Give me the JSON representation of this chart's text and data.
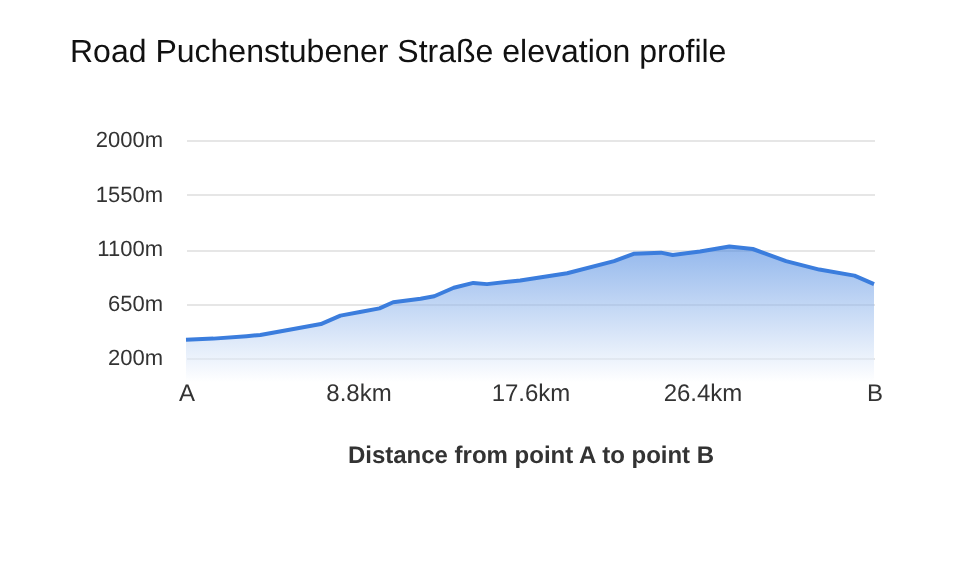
{
  "chart_data": {
    "type": "area",
    "title": "Road Puchenstubener Straße elevation profile",
    "xlabel": "Distance from point A to point B",
    "x": [
      0,
      1.4,
      3.1,
      3.8,
      5.5,
      6.9,
      7.9,
      8.9,
      9.9,
      10.6,
      12.0,
      12.7,
      13.7,
      14.7,
      15.4,
      17.1,
      19.5,
      21.9,
      22.9,
      24.3,
      24.9,
      26.3,
      27.8,
      29.0,
      30.7,
      32.4,
      34.2,
      35.2
    ],
    "series": [
      {
        "color": "#3b7ddd",
        "values": [
          350,
          360,
          380,
          390,
          440,
          480,
          550,
          580,
          610,
          660,
          690,
          710,
          780,
          820,
          810,
          840,
          900,
          1000,
          1060,
          1070,
          1050,
          1080,
          1120,
          1100,
          1000,
          930,
          880,
          810
        ]
      }
    ],
    "xlim": [
      0,
      35.2
    ],
    "xticks": [
      {
        "value": 0,
        "label": "A"
      },
      {
        "value": 8.8,
        "label": "8.8km"
      },
      {
        "value": 17.6,
        "label": "17.6km"
      },
      {
        "value": 26.4,
        "label": "26.4km"
      },
      {
        "value": 35.2,
        "label": "B"
      }
    ],
    "ylim": [
      200,
      2000
    ],
    "yticks": [
      {
        "value": 200,
        "label": "200m"
      },
      {
        "value": 650,
        "label": "650m"
      },
      {
        "value": 1100,
        "label": "1100m"
      },
      {
        "value": 1550,
        "label": "1550m"
      },
      {
        "value": 2000,
        "label": "2000m"
      }
    ],
    "grid": "y"
  }
}
